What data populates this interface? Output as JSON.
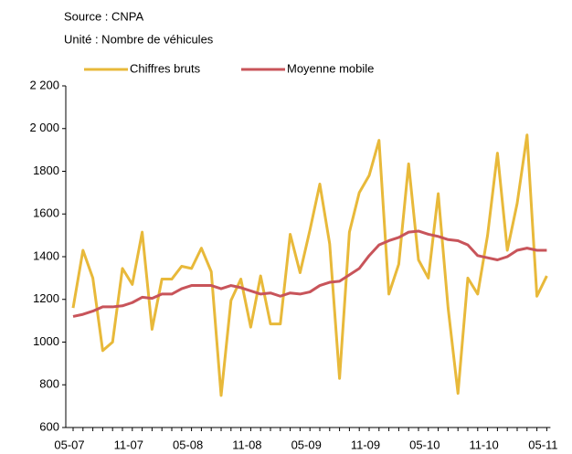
{
  "chart_data": {
    "type": "line",
    "source": "Source : CNPA",
    "unit": "Unité : Nombre de véhicules",
    "categories": [
      "05-07",
      null,
      null,
      null,
      null,
      null,
      "11-07",
      null,
      null,
      null,
      null,
      null,
      "05-08",
      null,
      null,
      null,
      null,
      null,
      "11-08",
      null,
      null,
      null,
      null,
      null,
      "05-09",
      null,
      null,
      null,
      null,
      null,
      "11-09",
      null,
      null,
      null,
      null,
      null,
      "05-10",
      null,
      null,
      null,
      null,
      null,
      "11-10",
      null,
      null,
      null,
      null,
      null,
      "05-11"
    ],
    "series": [
      {
        "name": "Chiffres bruts",
        "color": "#e8b93a",
        "values": [
          1160,
          1430,
          1300,
          960,
          1000,
          1345,
          1270,
          1515,
          1060,
          1295,
          1295,
          1355,
          1345,
          1440,
          1330,
          750,
          1195,
          1295,
          1070,
          1310,
          1085,
          1085,
          1505,
          1325,
          1525,
          1740,
          1460,
          830,
          1515,
          1700,
          1780,
          1945,
          1225,
          1365,
          1835,
          1385,
          1300,
          1695,
          1160,
          760,
          1300,
          1225,
          1500,
          1885,
          1430,
          1650,
          1970,
          1215,
          1310
        ]
      },
      {
        "name": "Moyenne mobile",
        "color": "#c8545a",
        "values": [
          1120,
          1130,
          1145,
          1165,
          1165,
          1170,
          1185,
          1210,
          1205,
          1225,
          1225,
          1250,
          1265,
          1265,
          1265,
          1250,
          1265,
          1255,
          1240,
          1225,
          1230,
          1215,
          1230,
          1225,
          1235,
          1265,
          1280,
          1285,
          1315,
          1345,
          1405,
          1455,
          1475,
          1490,
          1515,
          1520,
          1505,
          1495,
          1480,
          1475,
          1455,
          1405,
          1395,
          1385,
          1400,
          1430,
          1440,
          1430,
          1430
        ]
      }
    ],
    "ylim": [
      600,
      2200
    ],
    "yticks": [
      600,
      800,
      1000,
      1200,
      1400,
      1600,
      1800,
      {
        "value": 2000,
        "label": "2 000"
      },
      {
        "value": 2200,
        "label": "2 200"
      }
    ],
    "grid": false
  }
}
